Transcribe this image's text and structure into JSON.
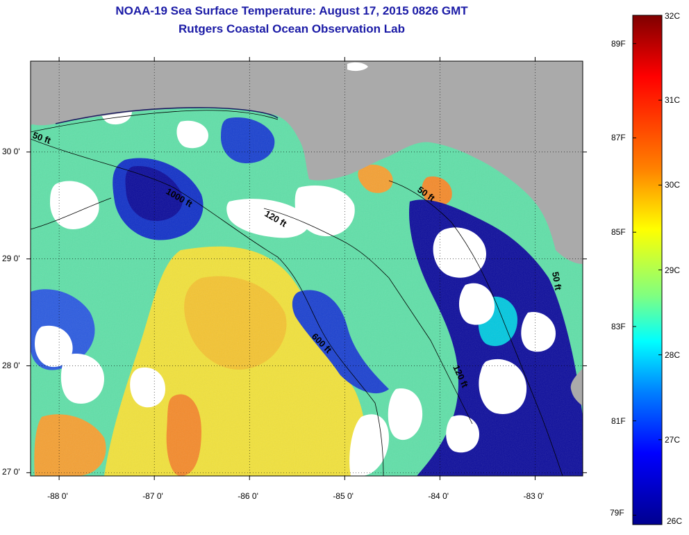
{
  "title": "NOAA-19 Sea Surface Temperature:  August 17, 2015 0826 GMT",
  "subtitle": "Rutgers Coastal Ocean Observation Lab",
  "map": {
    "lon_range": [
      -88.3,
      -82.5
    ],
    "lat_range": [
      26.97,
      30.85
    ],
    "lon_ticks": [
      {
        "value": -88,
        "label": "-88 0'"
      },
      {
        "value": -87,
        "label": "-87 0'"
      },
      {
        "value": -86,
        "label": "-86 0'"
      },
      {
        "value": -85,
        "label": "-85 0'"
      },
      {
        "value": -84,
        "label": "-84 0'"
      },
      {
        "value": -83,
        "label": "-83 0'"
      }
    ],
    "lat_ticks": [
      {
        "value": 30,
        "label": "30 0'"
      },
      {
        "value": 29,
        "label": "29 0'"
      },
      {
        "value": 28,
        "label": "28 0'"
      },
      {
        "value": 27,
        "label": "27 0'"
      }
    ],
    "contour_labels": [
      "50 ft",
      "1000 ft",
      "120 ft",
      "600 ft",
      "120 ft",
      "50 ft",
      "50 ft"
    ],
    "colors": {
      "land": "#aaaaaa",
      "cloud": "#ffffff"
    }
  },
  "colorbar": {
    "celsius_labels": [
      "32C",
      "31C",
      "30C",
      "29C",
      "28C",
      "27C",
      "26C"
    ],
    "fahrenheit_labels": [
      "89F",
      "87F",
      "85F",
      "83F",
      "81F",
      "79F"
    ],
    "range_c": [
      26,
      32
    ],
    "colors": [
      "#7f0000",
      "#ff0000",
      "#ff8000",
      "#ffff00",
      "#80ff80",
      "#00ffff",
      "#0080ff",
      "#0000ff",
      "#00008f"
    ]
  }
}
